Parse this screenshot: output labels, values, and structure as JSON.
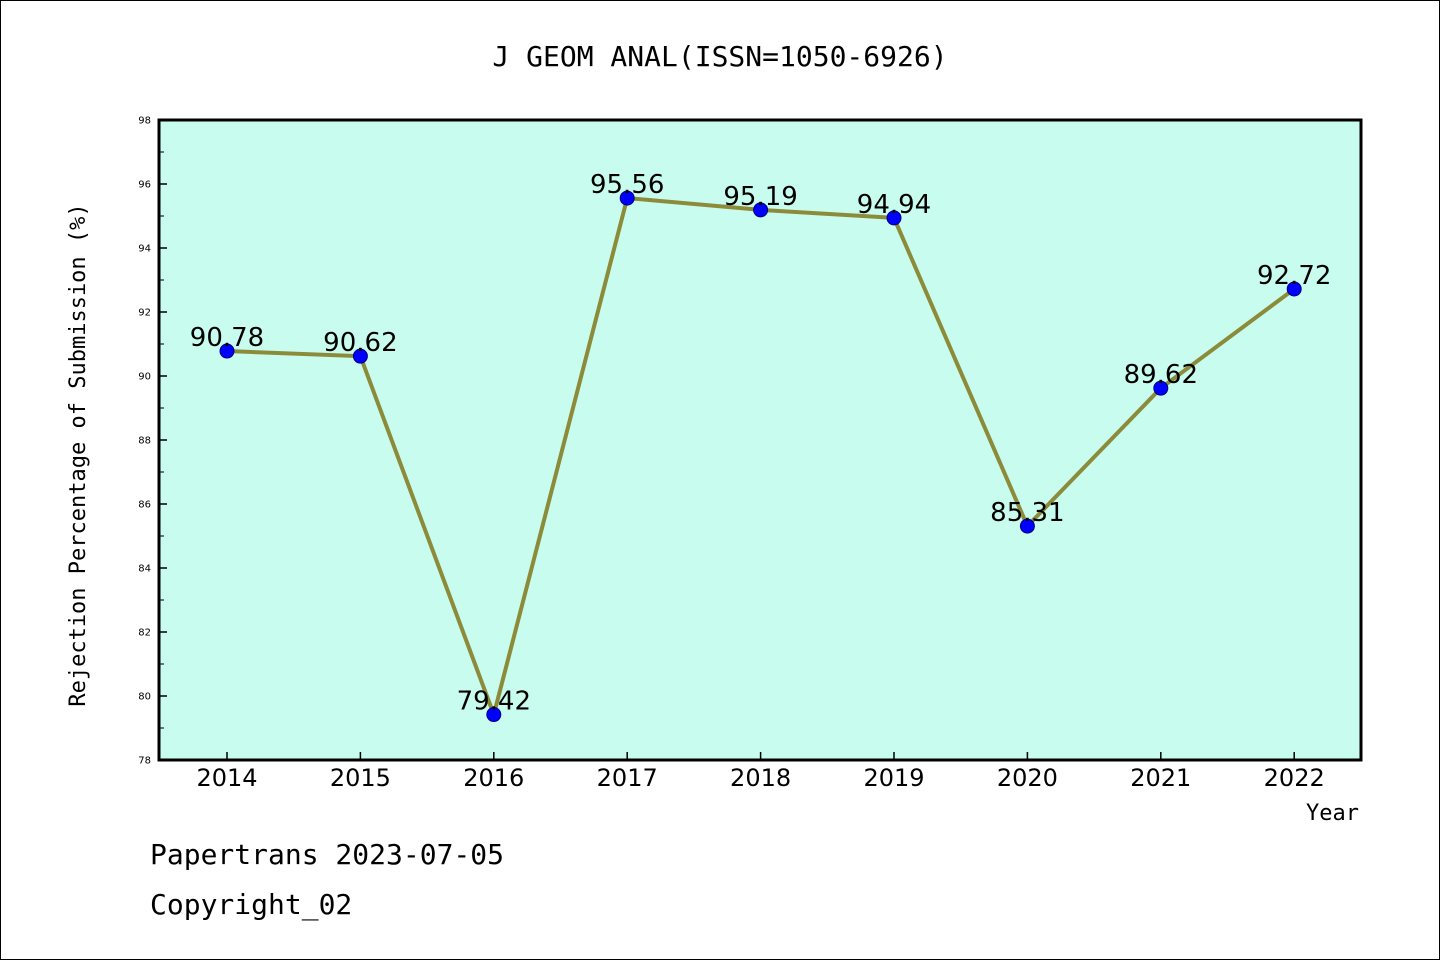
{
  "chart_data": {
    "type": "line",
    "title": "J GEOM ANAL(ISSN=1050-6926)",
    "xlabel": "Year",
    "ylabel": "Rejection Percentage of Submission (%)",
    "categories": [
      "2014",
      "2015",
      "2016",
      "2017",
      "2018",
      "2019",
      "2020",
      "2021",
      "2022"
    ],
    "series": [
      {
        "values": [
          90.78,
          90.62,
          79.42,
          95.56,
          95.19,
          94.94,
          85.31,
          89.62,
          92.72
        ]
      }
    ],
    "data_labels": [
      "90.78",
      "90.62",
      "79.42",
      "95.56",
      "95.19",
      "94.94",
      "85.31",
      "89.62",
      "92.72"
    ],
    "ylim": [
      78,
      98
    ],
    "yticks": [
      "78",
      "80",
      "82",
      "84",
      "86",
      "88",
      "90",
      "92",
      "94",
      "96",
      "98"
    ],
    "grid": false,
    "legend": "none",
    "colors": {
      "plot_background": "#c8fcee",
      "line": "#8b8b3a",
      "marker": "#0000ff"
    }
  },
  "footer": {
    "line1": "Papertrans 2023-07-05",
    "line2": "Copyright_02"
  }
}
